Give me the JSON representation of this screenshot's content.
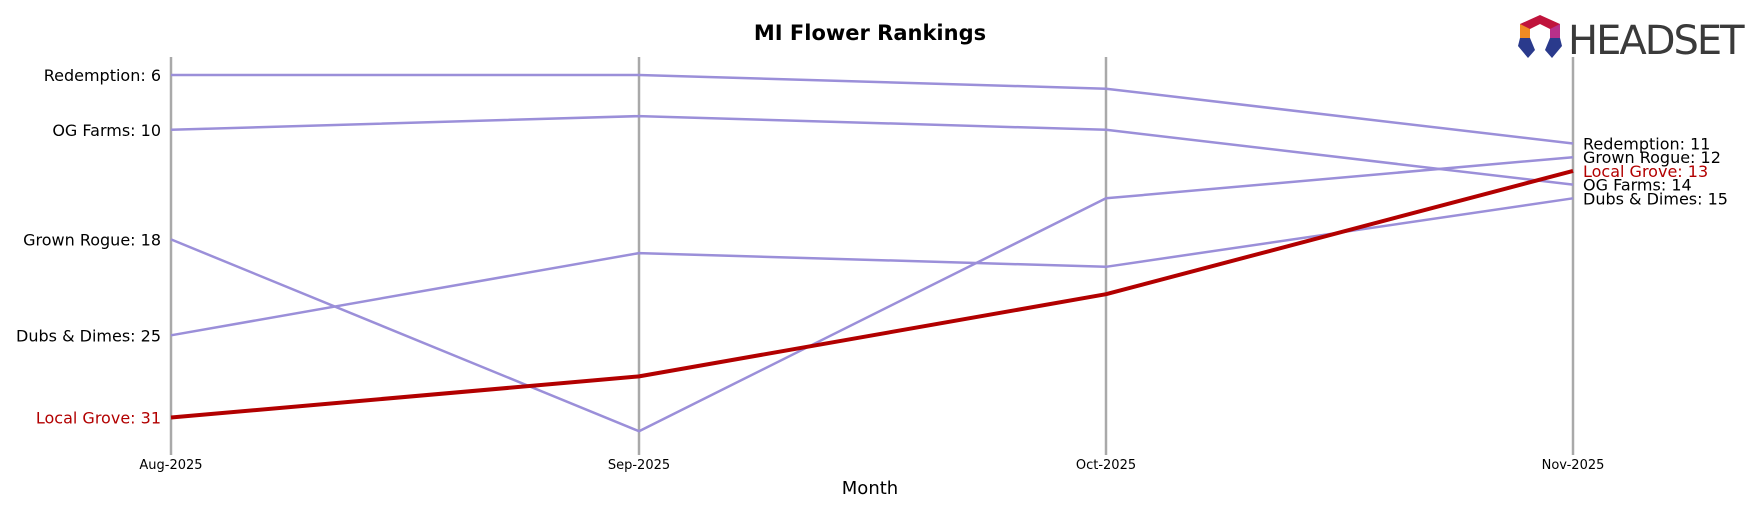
{
  "chart_data": {
    "type": "line",
    "title": "MI Flower Rankings",
    "xlabel": "Month",
    "ylabel": "",
    "x": [
      "Aug-2025",
      "Sep-2025",
      "Oct-2025",
      "Nov-2025"
    ],
    "y_inverted": true,
    "ylim": [
      5,
      32
    ],
    "grid": "vertical lines at each month",
    "series": [
      {
        "name": "Redemption",
        "values": [
          6,
          6,
          7,
          11
        ],
        "highlight": false
      },
      {
        "name": "OG Farms",
        "values": [
          10,
          9,
          10,
          14
        ],
        "highlight": false
      },
      {
        "name": "Grown Rogue",
        "values": [
          18,
          32,
          15,
          12
        ],
        "highlight": false
      },
      {
        "name": "Dubs & Dimes",
        "values": [
          25,
          19,
          20,
          15
        ],
        "highlight": false
      },
      {
        "name": "Local Grove",
        "values": [
          31,
          28,
          22,
          13
        ],
        "highlight": true
      }
    ],
    "start_labels": [
      "Redemption: 6",
      "OG Farms: 10",
      "Grown Rogue: 18",
      "Dubs & Dimes: 25",
      "Local Grove: 31"
    ],
    "end_labels": [
      "Redemption: 11",
      "Grown Rogue: 12",
      "Local Grove: 13",
      "OG Farms: 14",
      "Dubs & Dimes: 15"
    ],
    "colors": {
      "default": "#9b8fd9",
      "highlight": "#b20000",
      "grid": "#a9a9a9"
    }
  },
  "logo": {
    "text": "HEADSET"
  }
}
